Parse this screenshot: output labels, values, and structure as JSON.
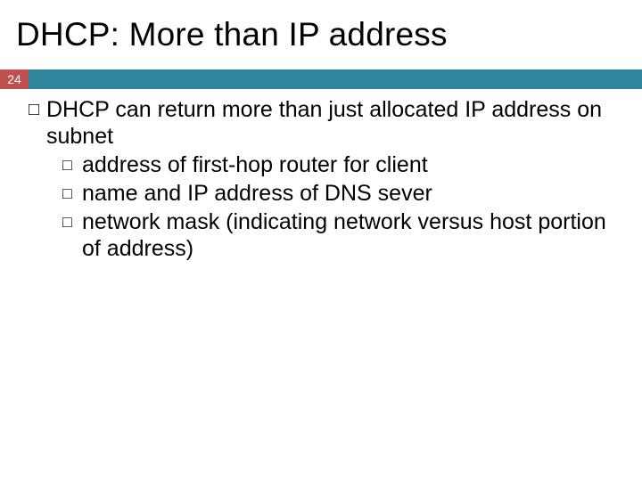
{
  "colors": {
    "red": "#c0504d",
    "teal": "#31859c",
    "text": "#000000",
    "bg": "#ffffff"
  },
  "typography": {
    "title_fontsize": 37,
    "body_fontsize": 25,
    "bullet_glyph": "□",
    "font_family": "Arial"
  },
  "slide": {
    "title": "DHCP: More than IP address",
    "page_number": "24",
    "body": {
      "main": "DHCP can return more than just allocated IP address on subnet",
      "sub": [
        "address of first-hop router for client",
        "name and IP address of DNS sever",
        "network mask (indicating network versus host portion of address)"
      ]
    }
  }
}
